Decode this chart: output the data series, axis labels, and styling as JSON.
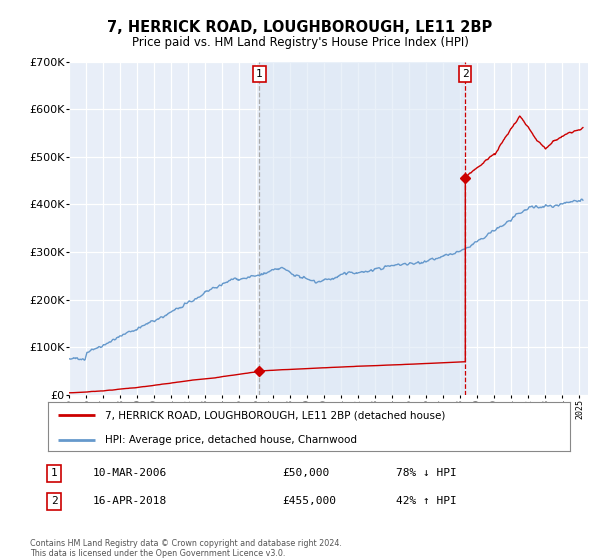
{
  "title": "7, HERRICK ROAD, LOUGHBOROUGH, LE11 2BP",
  "subtitle": "Price paid vs. HM Land Registry's House Price Index (HPI)",
  "hpi_label": "HPI: Average price, detached house, Charnwood",
  "property_label": "7, HERRICK ROAD, LOUGHBOROUGH, LE11 2BP (detached house)",
  "footer": "Contains HM Land Registry data © Crown copyright and database right 2024.\nThis data is licensed under the Open Government Licence v3.0.",
  "sale1_date": 2006.19,
  "sale1_price": 50000,
  "sale2_date": 2018.29,
  "sale2_price": 455000,
  "ylim": [
    0,
    700000
  ],
  "xlim_min": 1995,
  "xlim_max": 2025.5,
  "bg_color": "#e8eef8",
  "grid_color": "#ffffff",
  "red_color": "#cc0000",
  "blue_color": "#6699cc",
  "blue_fill": "#dde8f5",
  "vline_color": "#aaaaaa",
  "vline_color2": "#cc0000"
}
